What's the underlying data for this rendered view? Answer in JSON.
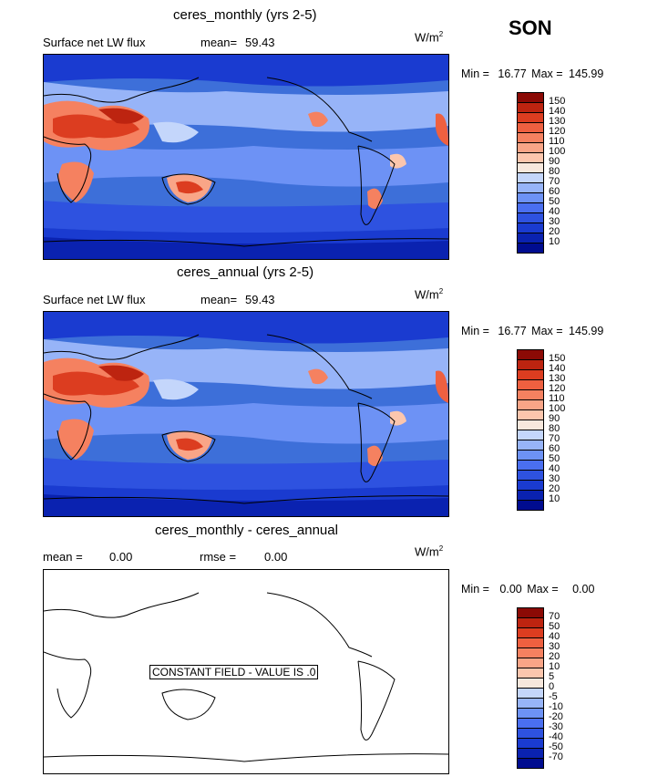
{
  "season": "SON",
  "colors": {
    "flux_levels": [
      "#000c8f",
      "#0a22b0",
      "#1a3bd0",
      "#2e52e0",
      "#4a6ff0",
      "#6d92f5",
      "#97b4f8",
      "#c4d6fb",
      "#f7e8dd",
      "#fcc6ad",
      "#f9a587",
      "#f58160",
      "#ee6040",
      "#dc3d20",
      "#bd2410",
      "#8b0a05"
    ],
    "diff_levels": [
      "#000c8f",
      "#0a22b0",
      "#1a3bd0",
      "#2e52e0",
      "#4a6ff0",
      "#6d92f5",
      "#97b4f8",
      "#c4d6fb",
      "#f7e8dd",
      "#fcc6ad",
      "#f9a587",
      "#f58160",
      "#ee6040",
      "#dc3d20",
      "#bd2410",
      "#8b0a05"
    ]
  },
  "panels": [
    {
      "title": "ceres_monthly (yrs 2-5)",
      "field_label": "Surface net LW flux",
      "mean_label": "mean=",
      "mean_value": "59.43",
      "units": "W/m",
      "units_exp": "2",
      "min_label": "Min =",
      "min_value": "16.77",
      "max_label": "Max =",
      "max_value": "145.99",
      "colorbar_labels": [
        "150",
        "140",
        "130",
        "120",
        "110",
        "100",
        "90",
        "80",
        "70",
        "60",
        "50",
        "40",
        "30",
        "20",
        "10"
      ]
    },
    {
      "title": "ceres_annual (yrs 2-5)",
      "field_label": "Surface net LW flux",
      "mean_label": "mean=",
      "mean_value": "59.43",
      "units": "W/m",
      "units_exp": "2",
      "min_label": "Min =",
      "min_value": "16.77",
      "max_label": "Max =",
      "max_value": "145.99",
      "colorbar_labels": [
        "150",
        "140",
        "130",
        "120",
        "110",
        "100",
        "90",
        "80",
        "70",
        "60",
        "50",
        "40",
        "30",
        "20",
        "10"
      ]
    },
    {
      "title": "ceres_monthly - ceres_annual",
      "mean_label": "mean =",
      "mean_value": "0.00",
      "rmse_label": "rmse =",
      "rmse_value": "0.00",
      "units": "W/m",
      "units_exp": "2",
      "min_label": "Min =",
      "min_value": "0.00",
      "max_label": "Max =",
      "max_value": "0.00",
      "constant_field_text": "CONSTANT FIELD - VALUE IS .0",
      "colorbar_labels": [
        "70",
        "50",
        "40",
        "30",
        "20",
        "10",
        "5",
        "0",
        "-5",
        "-10",
        "-20",
        "-30",
        "-40",
        "-50",
        "-70"
      ]
    }
  ],
  "chart_data": [
    {
      "type": "heatmap",
      "title": "ceres_monthly (yrs 2-5)",
      "subtitle": "Surface net LW flux",
      "units": "W/m2",
      "mean": 59.43,
      "min": 16.77,
      "max": 145.99,
      "levels": [
        10,
        20,
        30,
        40,
        50,
        60,
        70,
        80,
        90,
        100,
        110,
        120,
        130,
        140,
        150
      ]
    },
    {
      "type": "heatmap",
      "title": "ceres_annual (yrs 2-5)",
      "subtitle": "Surface net LW flux",
      "units": "W/m2",
      "mean": 59.43,
      "min": 16.77,
      "max": 145.99,
      "levels": [
        10,
        20,
        30,
        40,
        50,
        60,
        70,
        80,
        90,
        100,
        110,
        120,
        130,
        140,
        150
      ]
    },
    {
      "type": "heatmap",
      "title": "ceres_monthly - ceres_annual",
      "units": "W/m2",
      "mean": 0.0,
      "rmse": 0.0,
      "min": 0.0,
      "max": 0.0,
      "levels": [
        -70,
        -50,
        -40,
        -30,
        -20,
        -10,
        -5,
        0,
        5,
        10,
        20,
        30,
        40,
        50,
        70
      ]
    }
  ]
}
